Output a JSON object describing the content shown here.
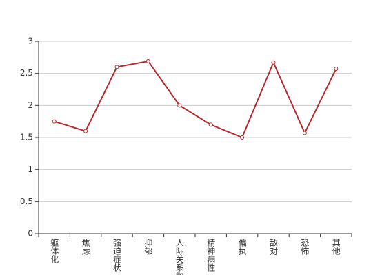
{
  "chart_data": {
    "type": "line",
    "categories": [
      "躯体化",
      "焦虑",
      "强迫症状",
      "抑郁",
      "人际关系敏感",
      "精神病性",
      "偏执",
      "敌对",
      "恐怖",
      "其他"
    ],
    "values": [
      1.75,
      1.6,
      2.6,
      2.69,
      2.0,
      1.7,
      1.5,
      2.67,
      1.57,
      2.57
    ],
    "color": "#b8282c",
    "ylim": [
      0,
      3
    ],
    "yticks": [
      0,
      0.5,
      1,
      1.5,
      2,
      2.5,
      3
    ],
    "grid": true
  }
}
